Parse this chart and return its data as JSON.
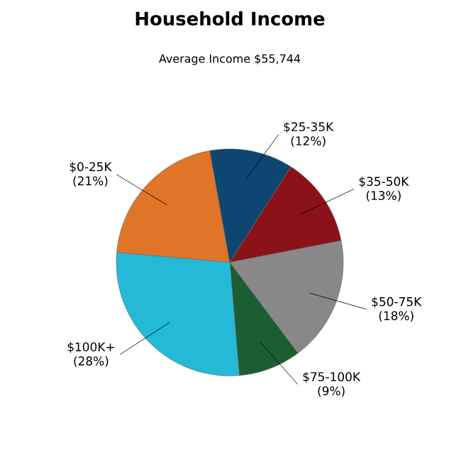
{
  "chart_data": {
    "type": "pie",
    "title": "Household Income",
    "subtitle": "Average Income  $55,744",
    "categories": [
      "$0-25K",
      "$25-35K",
      "$35-50K",
      "$50-75K",
      "$75-100K",
      "$100K+"
    ],
    "values": [
      21,
      12,
      13,
      18,
      9,
      28
    ],
    "value_labels": [
      "(21%)",
      "(12%)",
      "(13%)",
      "(18%)",
      "(9%)",
      "(28%)"
    ],
    "colors": [
      "#e07428",
      "#0d4670",
      "#8a1218",
      "#888888",
      "#1b5e33",
      "#24b9d7"
    ]
  }
}
